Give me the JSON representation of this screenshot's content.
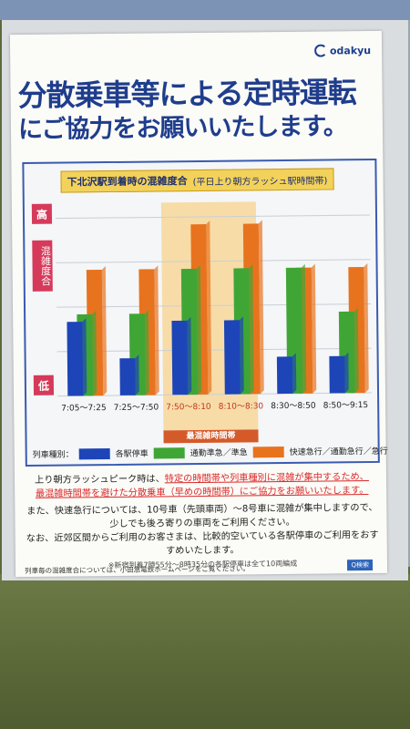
{
  "brand": {
    "logo_text": "odakyu"
  },
  "headline": {
    "line1": "分散乗車等による定時運転",
    "line2": "にご協力をお願いいたします。"
  },
  "chart": {
    "title": "下北沢駅到着時の混雑度合",
    "subtitle": "(平日上り朝方ラッシュ駅時間帯)",
    "axis_high": "高",
    "axis_low": "低",
    "ylabel": "混雑度合",
    "peak_label": "最混雑時間帯",
    "legend_title": "列車種別：",
    "legend_items": [
      {
        "label": "各駅停車",
        "color": "#1d45b8"
      },
      {
        "label": "通勤準急／準急",
        "color": "#3fa635"
      },
      {
        "label": "快速急行／通勤急行／急行",
        "color": "#e8731e"
      }
    ]
  },
  "chart_data": {
    "type": "bar",
    "categories": [
      "7:05〜7:25",
      "7:25〜7:50",
      "7:50〜8:10",
      "8:10〜8:30",
      "8:30〜8:50",
      "8:50〜9:15"
    ],
    "series": [
      {
        "name": "各駅停車",
        "values": [
          5,
          2.5,
          5,
          5,
          2.5,
          2.5
        ]
      },
      {
        "name": "通勤準急／準急",
        "values": [
          5.5,
          5.5,
          8.5,
          8.5,
          8.5,
          5.5
        ]
      },
      {
        "name": "快速急行／通勤急行／急行",
        "values": [
          8.5,
          8.5,
          11.5,
          11.5,
          8.5,
          8.5
        ]
      }
    ],
    "ylim": [
      0,
      12
    ],
    "colors": [
      "#1d45b8",
      "#3fa635",
      "#e8731e"
    ],
    "highlight_categories": [
      "7:50〜8:10",
      "8:10〜8:30"
    ],
    "grid": true
  },
  "body": {
    "p1_a": "上り朝方ラッシュピーク時は、",
    "p1_red1": "特定の時間帯や列車種別に混雑が集中するため、",
    "p1_red2": "最混雑時間帯を避けた分散乗車（早めの時間帯）にご協力をお願いいたします。",
    "p2": "また、快速急行については、10号車（先頭車両）〜8号車に混雑が集中しますので、少しでも後ろ寄りの車両をご利用ください。",
    "p3": "なお、近郊区間からご利用のお客さまは、比較的空いている各駅停車のご利用をおすすめいたします。",
    "note": "※新宿到着7時55分〜8時35分の各駅停車は全て10両編成"
  },
  "footer": {
    "text": "列車毎の混雑度合については、小田急電鉄ホームページをご覧ください。",
    "search": "Q検索"
  }
}
